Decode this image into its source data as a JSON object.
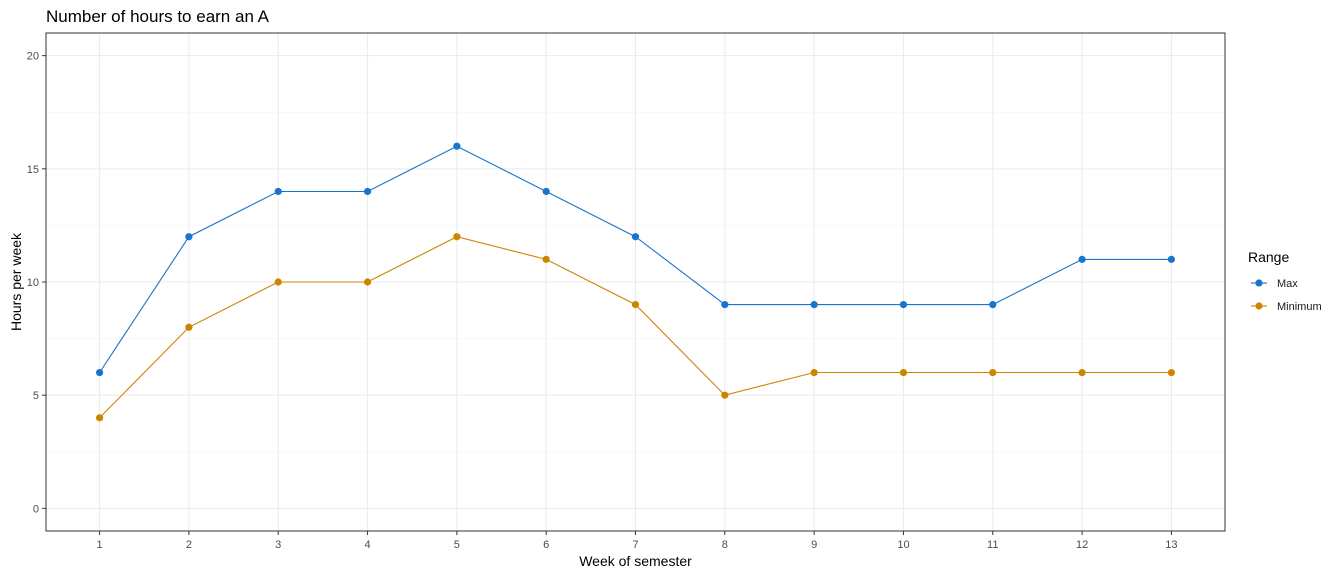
{
  "chart_data": {
    "type": "line",
    "title": "Number of hours to earn an A",
    "xlabel": "Week of semester",
    "ylabel": "Hours per week",
    "x": [
      1,
      2,
      3,
      4,
      5,
      6,
      7,
      8,
      9,
      10,
      11,
      12,
      13
    ],
    "x_ticks": [
      "1",
      "2",
      "3",
      "4",
      "5",
      "6",
      "7",
      "8",
      "9",
      "10",
      "11",
      "12",
      "13"
    ],
    "y_ticks": [
      "0",
      "5",
      "10",
      "15",
      "20"
    ],
    "xlim": [
      0.4,
      13.6
    ],
    "ylim": [
      -1,
      21
    ],
    "grid": true,
    "legend": {
      "title": "Range",
      "placement": "right"
    },
    "series": [
      {
        "name": "Max",
        "color": "#1874cd",
        "values": [
          6,
          12,
          14,
          14,
          16,
          14,
          12,
          9,
          9,
          9,
          9,
          11,
          11
        ]
      },
      {
        "name": "Minimum",
        "color": "#cd8500",
        "values": [
          4,
          8,
          10,
          10,
          12,
          11,
          9,
          5,
          6,
          6,
          6,
          6,
          6
        ]
      }
    ]
  }
}
